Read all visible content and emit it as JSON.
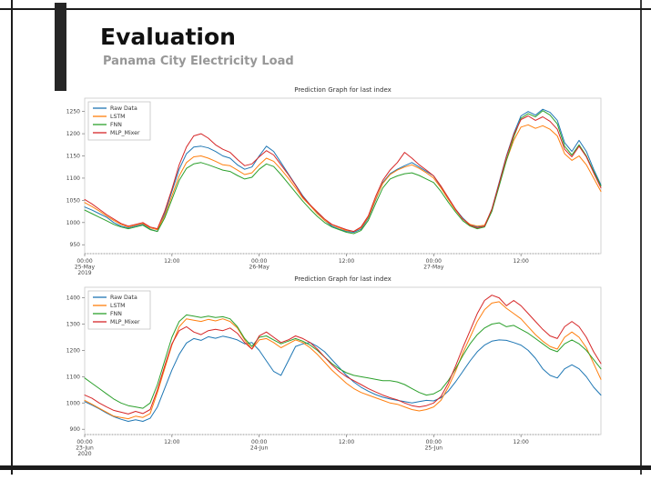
{
  "slide": {
    "title": "Evaluation",
    "subtitle": "Panama City Electricity Load",
    "accent_color": "#262626",
    "subtitle_color": "#979797",
    "frame_color": "#1c1c1c"
  },
  "chart_data": [
    {
      "type": "line",
      "title": "Prediction Graph for last index",
      "xlabel": "",
      "ylabel": "",
      "grid": false,
      "legend_position": "upper left",
      "x_hours": 72,
      "ylim": [
        930,
        1280
      ],
      "yticks": [
        950,
        1000,
        1050,
        1100,
        1150,
        1200,
        1250
      ],
      "xticks": [
        {
          "hour": 0,
          "label": "00:00\n25-May\n2019"
        },
        {
          "hour": 12,
          "label": "12:00"
        },
        {
          "hour": 24,
          "label": "00:00\n26-May"
        },
        {
          "hour": 36,
          "label": "12:00"
        },
        {
          "hour": 48,
          "label": "00:00\n27-May"
        },
        {
          "hour": 60,
          "label": "12:00"
        }
      ],
      "series": [
        {
          "name": "Raw Data",
          "color": "#1f77b4",
          "values": [
            1035,
            1028,
            1020,
            1012,
            1000,
            992,
            988,
            992,
            996,
            985,
            980,
            1020,
            1070,
            1120,
            1155,
            1170,
            1172,
            1168,
            1160,
            1150,
            1145,
            1130,
            1120,
            1125,
            1150,
            1172,
            1160,
            1135,
            1110,
            1085,
            1060,
            1040,
            1022,
            1005,
            992,
            985,
            980,
            978,
            985,
            1010,
            1050,
            1090,
            1110,
            1120,
            1128,
            1135,
            1125,
            1115,
            1105,
            1080,
            1055,
            1030,
            1010,
            995,
            990,
            992,
            1030,
            1090,
            1150,
            1200,
            1240,
            1250,
            1242,
            1255,
            1248,
            1230,
            1180,
            1160,
            1185,
            1160,
            1120,
            1085
          ]
        },
        {
          "name": "LSTM",
          "color": "#ff7f0e",
          "values": [
            1045,
            1036,
            1026,
            1015,
            1005,
            996,
            990,
            994,
            998,
            988,
            984,
            1015,
            1060,
            1105,
            1135,
            1148,
            1150,
            1145,
            1138,
            1130,
            1128,
            1118,
            1108,
            1112,
            1130,
            1145,
            1138,
            1120,
            1100,
            1078,
            1055,
            1038,
            1020,
            1005,
            995,
            988,
            982,
            980,
            988,
            1012,
            1052,
            1088,
            1108,
            1118,
            1125,
            1130,
            1122,
            1112,
            1100,
            1078,
            1052,
            1028,
            1008,
            996,
            992,
            994,
            1028,
            1085,
            1140,
            1185,
            1215,
            1220,
            1212,
            1218,
            1210,
            1195,
            1155,
            1140,
            1150,
            1130,
            1100,
            1070
          ]
        },
        {
          "name": "FNN",
          "color": "#2ca02c",
          "values": [
            1028,
            1020,
            1012,
            1004,
            996,
            990,
            986,
            990,
            994,
            984,
            980,
            1010,
            1052,
            1095,
            1122,
            1132,
            1135,
            1130,
            1124,
            1118,
            1115,
            1106,
            1098,
            1102,
            1120,
            1132,
            1126,
            1108,
            1088,
            1068,
            1048,
            1030,
            1014,
            1000,
            990,
            984,
            978,
            975,
            982,
            1005,
            1042,
            1078,
            1098,
            1105,
            1110,
            1112,
            1106,
            1098,
            1090,
            1070,
            1046,
            1024,
            1004,
            992,
            986,
            990,
            1025,
            1082,
            1140,
            1192,
            1235,
            1245,
            1238,
            1252,
            1242,
            1222,
            1172,
            1152,
            1175,
            1150,
            1115,
            1082
          ]
        },
        {
          "name": "MLP_Mixer",
          "color": "#d62728",
          "values": [
            1052,
            1042,
            1030,
            1018,
            1008,
            998,
            992,
            996,
            1000,
            990,
            986,
            1025,
            1075,
            1130,
            1170,
            1195,
            1200,
            1190,
            1175,
            1165,
            1158,
            1142,
            1128,
            1132,
            1148,
            1162,
            1152,
            1130,
            1108,
            1084,
            1058,
            1040,
            1024,
            1008,
            996,
            990,
            984,
            980,
            990,
            1015,
            1058,
            1095,
            1118,
            1135,
            1158,
            1145,
            1130,
            1118,
            1105,
            1082,
            1056,
            1030,
            1008,
            994,
            988,
            992,
            1030,
            1088,
            1148,
            1198,
            1232,
            1240,
            1230,
            1238,
            1228,
            1210,
            1165,
            1148,
            1172,
            1148,
            1112,
            1078
          ]
        }
      ]
    },
    {
      "type": "line",
      "title": "Prediction Graph for last index",
      "xlabel": "",
      "ylabel": "",
      "grid": false,
      "legend_position": "upper left",
      "x_hours": 72,
      "ylim": [
        880,
        1440
      ],
      "yticks": [
        900,
        1000,
        1100,
        1200,
        1300,
        1400
      ],
      "xticks": [
        {
          "hour": 0,
          "label": "00:00\n23-Jun\n2020"
        },
        {
          "hour": 12,
          "label": "12:00"
        },
        {
          "hour": 24,
          "label": "00:00\n24-Jun"
        },
        {
          "hour": 36,
          "label": "12:00"
        },
        {
          "hour": 48,
          "label": "00:00\n25-Jun"
        },
        {
          "hour": 60,
          "label": "12:00"
        }
      ],
      "series": [
        {
          "name": "Raw Data",
          "color": "#1f77b4",
          "values": [
            1005,
            992,
            978,
            962,
            948,
            938,
            930,
            936,
            930,
            942,
            985,
            1055,
            1125,
            1185,
            1228,
            1245,
            1238,
            1252,
            1246,
            1254,
            1248,
            1240,
            1225,
            1230,
            1200,
            1160,
            1120,
            1105,
            1160,
            1215,
            1225,
            1230,
            1215,
            1195,
            1165,
            1135,
            1105,
            1080,
            1060,
            1045,
            1032,
            1022,
            1015,
            1010,
            1005,
            1000,
            1005,
            1010,
            1008,
            1020,
            1045,
            1080,
            1120,
            1160,
            1195,
            1220,
            1235,
            1240,
            1238,
            1230,
            1220,
            1200,
            1170,
            1130,
            1105,
            1095,
            1130,
            1145,
            1130,
            1100,
            1060,
            1030
          ]
        },
        {
          "name": "LSTM",
          "color": "#ff7f0e",
          "values": [
            1010,
            995,
            980,
            965,
            950,
            945,
            940,
            950,
            945,
            960,
            1040,
            1130,
            1220,
            1290,
            1320,
            1315,
            1310,
            1318,
            1312,
            1320,
            1310,
            1285,
            1240,
            1205,
            1240,
            1245,
            1230,
            1210,
            1225,
            1240,
            1230,
            1210,
            1185,
            1155,
            1125,
            1100,
            1075,
            1055,
            1040,
            1030,
            1020,
            1010,
            1000,
            995,
            985,
            975,
            970,
            975,
            985,
            1010,
            1060,
            1120,
            1190,
            1250,
            1310,
            1355,
            1380,
            1385,
            1360,
            1340,
            1320,
            1290,
            1260,
            1235,
            1215,
            1205,
            1250,
            1270,
            1250,
            1210,
            1150,
            1090
          ]
        },
        {
          "name": "FNN",
          "color": "#2ca02c",
          "values": [
            1095,
            1075,
            1055,
            1035,
            1015,
            1000,
            990,
            985,
            980,
            1000,
            1070,
            1160,
            1250,
            1310,
            1335,
            1330,
            1325,
            1330,
            1325,
            1328,
            1320,
            1290,
            1245,
            1215,
            1250,
            1255,
            1240,
            1225,
            1235,
            1245,
            1235,
            1220,
            1200,
            1175,
            1150,
            1130,
            1115,
            1105,
            1100,
            1095,
            1090,
            1085,
            1085,
            1080,
            1070,
            1055,
            1040,
            1030,
            1035,
            1050,
            1085,
            1130,
            1180,
            1225,
            1260,
            1285,
            1300,
            1305,
            1290,
            1295,
            1280,
            1265,
            1245,
            1225,
            1205,
            1195,
            1225,
            1240,
            1225,
            1200,
            1165,
            1130
          ]
        },
        {
          "name": "MLP_Mixer",
          "color": "#d62728",
          "values": [
            1030,
            1018,
            1000,
            985,
            972,
            965,
            958,
            968,
            960,
            975,
            1050,
            1140,
            1225,
            1275,
            1290,
            1270,
            1260,
            1275,
            1280,
            1275,
            1285,
            1265,
            1230,
            1205,
            1255,
            1270,
            1250,
            1230,
            1240,
            1255,
            1245,
            1230,
            1205,
            1175,
            1145,
            1120,
            1100,
            1085,
            1070,
            1055,
            1042,
            1030,
            1020,
            1012,
            1000,
            990,
            985,
            990,
            1000,
            1025,
            1075,
            1140,
            1210,
            1275,
            1340,
            1390,
            1410,
            1400,
            1370,
            1390,
            1370,
            1340,
            1310,
            1280,
            1255,
            1245,
            1290,
            1310,
            1290,
            1250,
            1195,
            1150
          ]
        }
      ]
    }
  ]
}
